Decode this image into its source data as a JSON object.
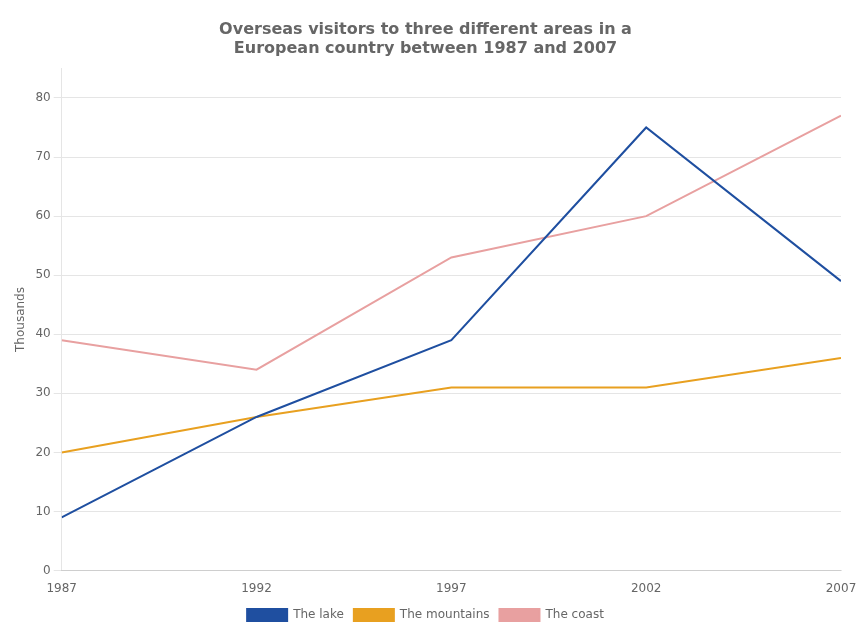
{
  "chart_data": {
    "type": "line",
    "title": "Overseas visitors to three different areas in a\nEuropean country between 1987 and 2007",
    "y_label": "Thousands",
    "x": [
      1987,
      1992,
      1997,
      2002,
      2007
    ],
    "series": [
      {
        "name": "The lake",
        "color": "#1f4fa0",
        "values": [
          9,
          26,
          39,
          75,
          49
        ]
      },
      {
        "name": "The mountains",
        "color": "#e8a020",
        "values": [
          20,
          26,
          31,
          31,
          36
        ]
      },
      {
        "name": "The coast",
        "color": "#e8a0a0",
        "values": [
          39,
          34,
          53,
          60,
          77
        ]
      }
    ],
    "xlim": [
      1987,
      2007
    ],
    "xticks": [
      1987,
      1992,
      1997,
      2002,
      2007
    ],
    "ylim": [
      0,
      85
    ],
    "yticks": [
      0,
      10,
      20,
      30,
      40,
      50,
      60,
      70,
      80
    ],
    "grid": "y",
    "legend": "bottom"
  }
}
